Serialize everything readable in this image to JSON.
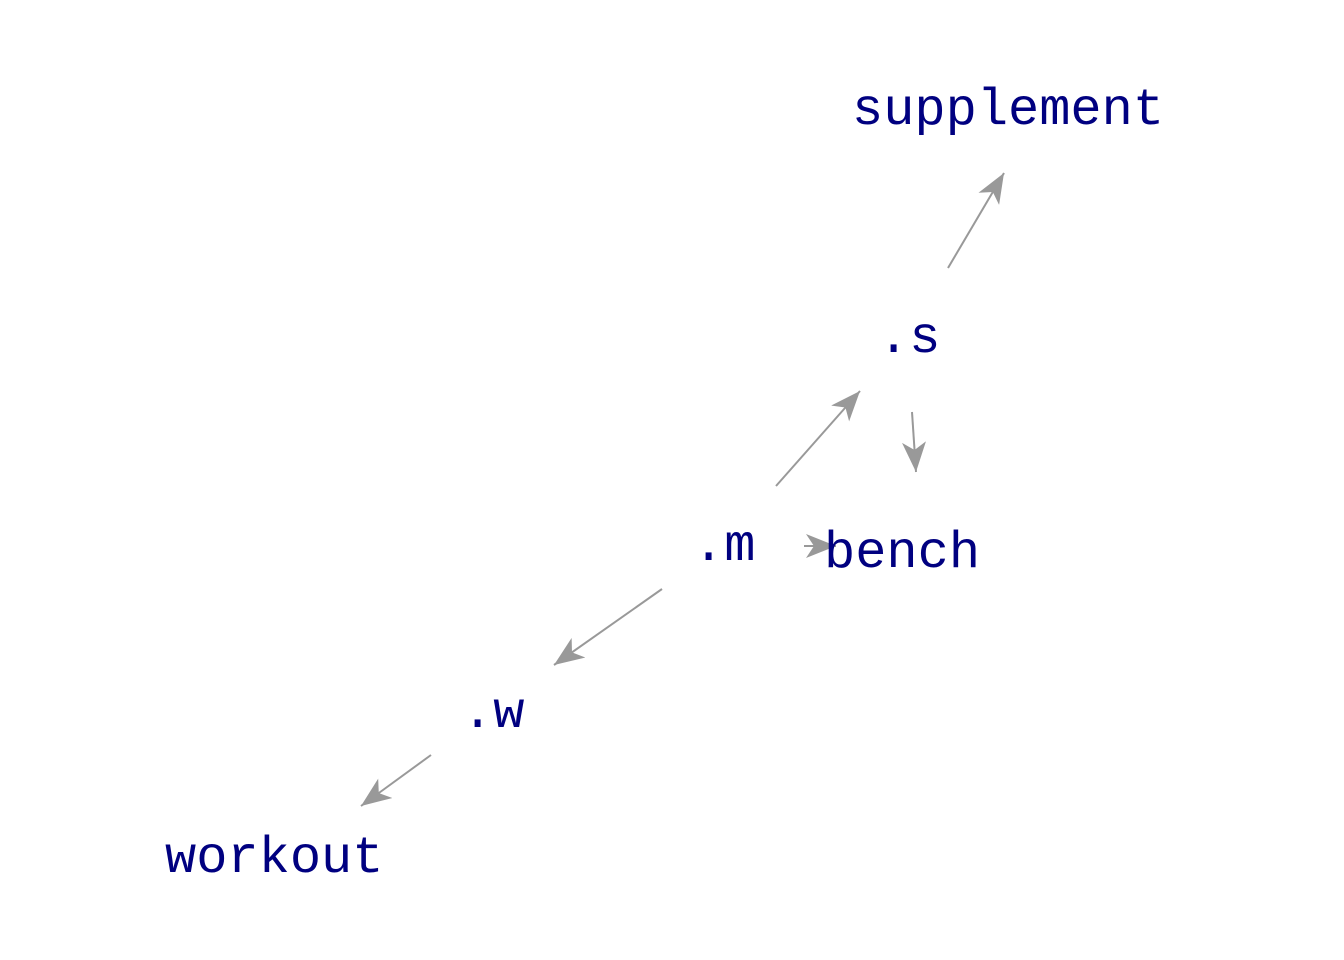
{
  "colors": {
    "node_text": "#000080",
    "edge": "#999999",
    "background": "#ffffff"
  },
  "nodes": {
    "supplement": "supplement",
    "s": ".s",
    "bench": "bench",
    "m": ".m",
    "w": ".w",
    "workout": "workout"
  },
  "edges": [
    {
      "from": "s",
      "to": "supplement"
    },
    {
      "from": "s",
      "to": "bench"
    },
    {
      "from": "m",
      "to": "s"
    },
    {
      "from": "m",
      "to": "bench"
    },
    {
      "from": "m",
      "to": "w"
    },
    {
      "from": "w",
      "to": "workout"
    }
  ]
}
